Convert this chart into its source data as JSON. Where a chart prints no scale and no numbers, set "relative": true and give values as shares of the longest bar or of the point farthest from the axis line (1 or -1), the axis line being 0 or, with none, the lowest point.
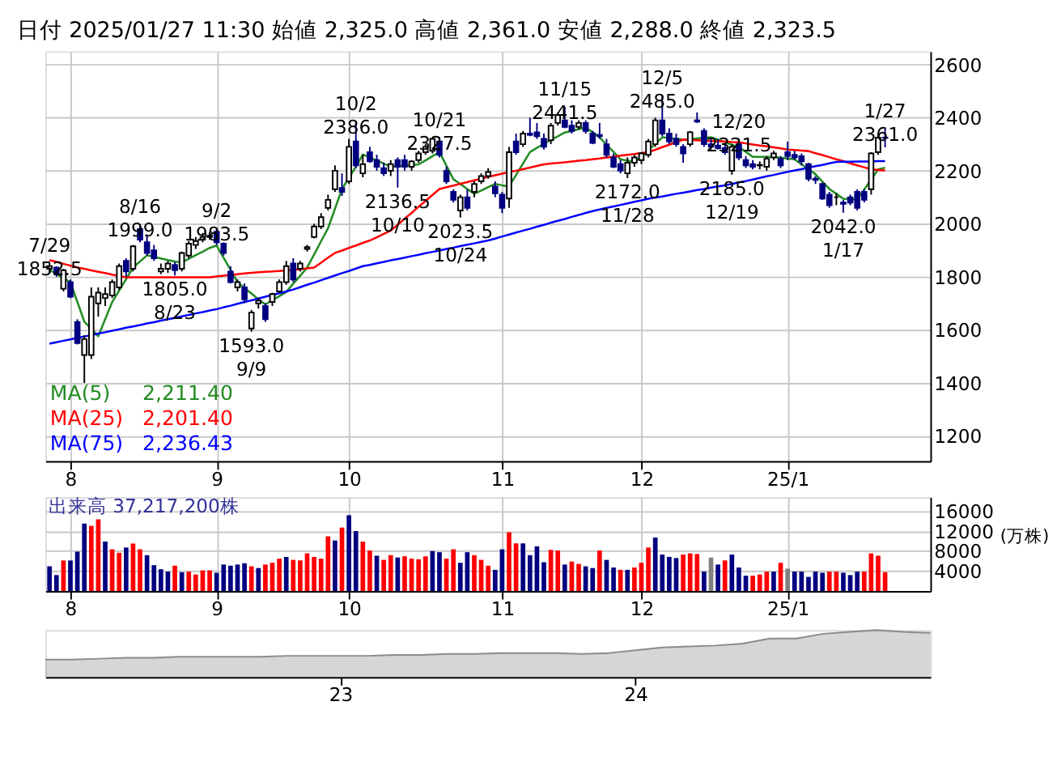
{
  "chart_data": [
    {
      "type": "candlestick",
      "title": "日付 2025/01/27 11:30 始値 2,325.0 高値 2,361.0 安値 2,288.0 終値 2,323.5",
      "categories": [
        null,
        null,
        null,
        "8",
        null,
        null,
        null,
        null,
        null,
        null,
        null,
        null,
        null,
        null,
        null,
        null,
        null,
        null,
        null,
        null,
        null,
        null,
        null,
        null,
        "9",
        null,
        null,
        null,
        null,
        null,
        null,
        null,
        null,
        null,
        null,
        null,
        null,
        null,
        null,
        null,
        null,
        null,
        null,
        "10",
        null,
        null,
        null,
        null,
        null,
        null,
        null,
        null,
        null,
        null,
        null,
        null,
        null,
        null,
        null,
        null,
        null,
        null,
        null,
        null,
        null,
        "11",
        null,
        null,
        null,
        null,
        null,
        null,
        null,
        null,
        null,
        null,
        null,
        null,
        null,
        null,
        null,
        null,
        null,
        null,
        null,
        "12",
        null,
        null,
        null,
        null,
        null,
        null,
        null,
        null,
        null,
        null,
        null,
        null,
        null,
        null,
        null,
        null,
        null,
        null,
        null,
        null,
        "25/1",
        null,
        null,
        null,
        null,
        null,
        null,
        null,
        null,
        null,
        null,
        null,
        null,
        null,
        null
      ],
      "ohlc": [
        [
          1830,
          1852.5,
          1815,
          1840
        ],
        [
          1835,
          1840,
          1800,
          1810
        ],
        [
          1755,
          1830,
          1745,
          1825
        ],
        [
          1780,
          1790,
          1720,
          1725
        ],
        [
          1630,
          1640,
          1545,
          1550
        ],
        [
          1505,
          1580,
          1400,
          1565
        ],
        [
          1505,
          1760,
          1490,
          1725
        ],
        [
          1700,
          1760,
          1650,
          1740
        ],
        [
          1720,
          1760,
          1690,
          1735
        ],
        [
          1730,
          1790,
          1720,
          1780
        ],
        [
          1760,
          1850,
          1750,
          1840
        ],
        [
          1860,
          1870,
          1800,
          1820
        ],
        [
          1830,
          1920,
          1820,
          1915
        ],
        [
          1980,
          1999.0,
          1930,
          1940
        ],
        [
          1930,
          1960,
          1880,
          1890
        ],
        [
          1900,
          1920,
          1860,
          1870
        ],
        [
          1820,
          1850,
          1810,
          1830
        ],
        [
          1830,
          1860,
          1815,
          1850
        ],
        [
          1845,
          1855,
          1805,
          1825
        ],
        [
          1830,
          1895,
          1820,
          1890
        ],
        [
          1880,
          1935,
          1870,
          1925
        ],
        [
          1920,
          1950,
          1905,
          1935
        ],
        [
          1940,
          1965,
          1930,
          1950
        ],
        [
          1950,
          1970,
          1940,
          1955
        ],
        [
          1970,
          1983.5,
          1920,
          1930
        ],
        [
          1925,
          1930,
          1880,
          1890
        ],
        [
          1820,
          1840,
          1775,
          1780
        ],
        [
          1760,
          1790,
          1745,
          1780
        ],
        [
          1760,
          1775,
          1700,
          1715
        ],
        [
          1605,
          1675,
          1593,
          1665
        ],
        [
          1700,
          1720,
          1680,
          1710
        ],
        [
          1690,
          1700,
          1630,
          1640
        ],
        [
          1705,
          1740,
          1690,
          1735
        ],
        [
          1745,
          1790,
          1740,
          1780
        ],
        [
          1780,
          1860,
          1770,
          1840
        ],
        [
          1850,
          1870,
          1780,
          1790
        ],
        [
          1830,
          1860,
          1820,
          1850
        ],
        [
          1905,
          1920,
          1895,
          1912
        ],
        [
          1950,
          2000,
          1945,
          1990
        ],
        [
          1990,
          2040,
          1980,
          2025
        ],
        [
          2060,
          2110,
          2050,
          2090
        ],
        [
          2130,
          2220,
          2120,
          2200
        ],
        [
          2135,
          2190,
          2105,
          2120
        ],
        [
          2160,
          2320,
          2150,
          2290
        ],
        [
          2310,
          2386,
          2210,
          2220
        ],
        [
          2190,
          2260,
          2175,
          2225
        ],
        [
          2270,
          2290,
          2230,
          2235
        ],
        [
          2240,
          2260,
          2200,
          2215
        ],
        [
          2210,
          2230,
          2180,
          2190
        ],
        [
          2200,
          2240,
          2180,
          2225
        ],
        [
          2240,
          2250,
          2136.5,
          2215
        ],
        [
          2240,
          2260,
          2200,
          2215
        ],
        [
          2215,
          2240,
          2200,
          2235
        ],
        [
          2240,
          2275,
          2230,
          2265
        ],
        [
          2270,
          2300,
          2260,
          2290
        ],
        [
          2275,
          2325,
          2265,
          2320
        ],
        [
          2310,
          2327.5,
          2250,
          2260
        ],
        [
          2200,
          2215,
          2150,
          2160
        ],
        [
          2120,
          2130,
          2080,
          2090
        ],
        [
          2050,
          2110,
          2023.5,
          2100
        ],
        [
          2100,
          2130,
          2050,
          2060
        ],
        [
          2120,
          2160,
          2100,
          2150
        ],
        [
          2160,
          2190,
          2150,
          2180
        ],
        [
          2180,
          2210,
          2170,
          2195
        ],
        [
          2140,
          2160,
          2100,
          2115
        ],
        [
          2110,
          2120,
          2040,
          2060
        ],
        [
          2095,
          2290,
          2060,
          2270
        ],
        [
          2310,
          2340,
          2260,
          2270
        ],
        [
          2300,
          2350,
          2290,
          2340
        ],
        [
          2340,
          2400,
          2330,
          2335
        ],
        [
          2345,
          2380,
          2320,
          2330
        ],
        [
          2320,
          2340,
          2280,
          2290
        ],
        [
          2315,
          2380,
          2300,
          2370
        ],
        [
          2380,
          2420,
          2370,
          2410
        ],
        [
          2390,
          2441.5,
          2360,
          2365
        ],
        [
          2370,
          2390,
          2340,
          2350
        ],
        [
          2365,
          2390,
          2355,
          2380
        ],
        [
          2380,
          2390,
          2340,
          2350
        ],
        [
          2340,
          2350,
          2300,
          2305
        ],
        [
          2335,
          2380,
          2320,
          2330
        ],
        [
          2300,
          2320,
          2250,
          2260
        ],
        [
          2250,
          2265,
          2210,
          2215
        ],
        [
          2225,
          2240,
          2190,
          2200
        ],
        [
          2190,
          2250,
          2172,
          2230
        ],
        [
          2230,
          2260,
          2215,
          2250
        ],
        [
          2240,
          2270,
          2225,
          2265
        ],
        [
          2260,
          2320,
          2250,
          2310
        ],
        [
          2300,
          2400,
          2290,
          2390
        ],
        [
          2390,
          2485,
          2330,
          2340
        ],
        [
          2340,
          2360,
          2300,
          2310
        ],
        [
          2320,
          2340,
          2290,
          2300
        ],
        [
          2290,
          2300,
          2230,
          2265
        ],
        [
          2300,
          2350,
          2290,
          2345
        ],
        [
          2390,
          2420,
          2380,
          2385
        ],
        [
          2350,
          2360,
          2290,
          2300
        ],
        [
          2300,
          2320,
          2280,
          2290
        ],
        [
          2295,
          2320,
          2280,
          2285
        ],
        [
          2285,
          2300,
          2260,
          2270
        ],
        [
          2200,
          2300,
          2185,
          2290
        ],
        [
          2300,
          2321.5,
          2240,
          2250
        ],
        [
          2240,
          2255,
          2210,
          2220
        ],
        [
          2225,
          2240,
          2205,
          2215
        ],
        [
          2220,
          2235,
          2205,
          2222
        ],
        [
          2215,
          2255,
          2200,
          2245
        ],
        [
          2250,
          2275,
          2240,
          2265
        ],
        [
          2245,
          2255,
          2210,
          2220
        ],
        [
          2270,
          2310,
          2240,
          2255
        ],
        [
          2260,
          2275,
          2240,
          2250
        ],
        [
          2255,
          2265,
          2220,
          2235
        ],
        [
          2225,
          2230,
          2160,
          2170
        ],
        [
          2170,
          2180,
          2150,
          2165
        ],
        [
          2150,
          2155,
          2090,
          2095
        ],
        [
          2110,
          2120,
          2060,
          2070
        ],
        [
          2100,
          2115,
          2070,
          2100
        ],
        [
          2080,
          2090,
          2042,
          2075
        ],
        [
          2100,
          2110,
          2070,
          2080
        ],
        [
          2120,
          2130,
          2050,
          2060
        ],
        [
          2120,
          2130,
          2080,
          2090
        ],
        [
          2130,
          2270,
          2110,
          2265
        ],
        [
          2270,
          2340,
          2260,
          2325
        ],
        [
          2325,
          2361,
          2288,
          2323.5
        ]
      ],
      "series": [
        {
          "name": "MA(5)",
          "type": "line",
          "color": "#228b22",
          "values": [
            1826,
            1811,
            1795,
            1780,
            1705,
            1631,
            1604,
            1576,
            1640,
            1705,
            1748,
            1791,
            1835,
            1858,
            1881,
            1875,
            1869,
            1863,
            1858,
            1854,
            1868,
            1882,
            1895,
            1909,
            1918,
            1872,
            1826,
            1780,
            1758,
            1737,
            1715,
            1696,
            1712,
            1727,
            1743,
            1774,
            1804,
            1835,
            1884,
            1934,
            1983,
            2057,
            2131,
            2173,
            2215,
            2261,
            2250,
            2238,
            2227,
            2215,
            2217,
            2219,
            2222,
            2224,
            2239,
            2255,
            2270,
            2219,
            2168,
            2150,
            2131,
            2113,
            2125,
            2138,
            2150,
            2145,
            2141,
            2184,
            2227,
            2270,
            2286,
            2301,
            2317,
            2330,
            2344,
            2350,
            2357,
            2363,
            2345,
            2326,
            2298,
            2271,
            2243,
            2238,
            2233,
            2252,
            2277,
            2301,
            2326,
            2323,
            2320,
            2317,
            2319,
            2322,
            2324,
            2326,
            2317,
            2308,
            2298,
            2289,
            2271,
            2252,
            2252,
            2252,
            2252,
            2249,
            2246,
            2243,
            2224,
            2206,
            2187,
            2159,
            2131,
            2113,
            2094,
            2093,
            2091,
            2129,
            2167,
            2205,
            2211.4
          ]
        },
        {
          "name": "MA(25)",
          "type": "line",
          "color": "#ff0000",
          "values": [
            1863,
            1856,
            1849,
            1842,
            1835,
            1830,
            1824,
            1819,
            1814,
            1808,
            1803,
            1798,
            1798,
            1798,
            1798,
            1798,
            1798,
            1798,
            1798,
            1798,
            1798,
            1798,
            1798,
            1798,
            1801,
            1804,
            1807,
            1810,
            1813,
            1815,
            1817,
            1819,
            1820,
            1822,
            1824,
            1826,
            1829,
            1832,
            1835,
            1853,
            1872,
            1890,
            1899,
            1909,
            1918,
            1928,
            1937,
            1949,
            1962,
            1974,
            1996,
            2019,
            2041,
            2064,
            2086,
            2109,
            2131,
            2138,
            2144,
            2151,
            2157,
            2164,
            2170,
            2177,
            2183,
            2189,
            2195,
            2200,
            2206,
            2212,
            2218,
            2224,
            2227,
            2229,
            2232,
            2235,
            2238,
            2240,
            2243,
            2246,
            2250,
            2253,
            2257,
            2260,
            2263,
            2267,
            2270,
            2279,
            2289,
            2298,
            2308,
            2317,
            2316,
            2315,
            2313,
            2312,
            2311,
            2310,
            2308,
            2307,
            2303,
            2299,
            2295,
            2292,
            2288,
            2284,
            2280,
            2278,
            2276,
            2274,
            2266,
            2259,
            2251,
            2243,
            2236,
            2228,
            2220,
            2213,
            2205,
            2203,
            2201.4
          ]
        },
        {
          "name": "MA(75)",
          "type": "line",
          "color": "#0000ff",
          "values": [
            1548,
            1553,
            1559,
            1564,
            1570,
            1575,
            1580,
            1586,
            1591,
            1597,
            1602,
            1608,
            1613,
            1618,
            1624,
            1629,
            1635,
            1640,
            1645,
            1651,
            1656,
            1662,
            1667,
            1673,
            1678,
            1685,
            1691,
            1698,
            1705,
            1711,
            1718,
            1725,
            1732,
            1738,
            1745,
            1752,
            1761,
            1770,
            1778,
            1787,
            1796,
            1805,
            1814,
            1822,
            1831,
            1840,
            1845,
            1851,
            1856,
            1862,
            1867,
            1872,
            1878,
            1883,
            1889,
            1894,
            1899,
            1905,
            1910,
            1916,
            1921,
            1926,
            1932,
            1937,
            1944,
            1952,
            1959,
            1967,
            1974,
            1981,
            1989,
            1996,
            2004,
            2011,
            2018,
            2026,
            2033,
            2041,
            2048,
            2054,
            2060,
            2065,
            2071,
            2077,
            2083,
            2088,
            2094,
            2099,
            2103,
            2108,
            2113,
            2117,
            2122,
            2127,
            2131,
            2136,
            2141,
            2145,
            2150,
            2156,
            2161,
            2167,
            2173,
            2179,
            2184,
            2190,
            2196,
            2201,
            2206,
            2212,
            2217,
            2222,
            2228,
            2233,
            2234,
            2234,
            2235,
            2235,
            2235,
            2236,
            2236.43
          ]
        }
      ],
      "annotations": [
        "2,211.40",
        "2,201.40",
        "2,236.43",
        {
          "text": "7/29\n1852.5",
          "y": 1852.5
        },
        {
          "text": "8/16\n1999.0",
          "y": 1999.0
        },
        {
          "text": "1805.0\n8/23",
          "y": 1805.0
        },
        {
          "text": "9/2\n1983.5",
          "y": 1983.5
        },
        {
          "text": "1593.0\n9/9",
          "y": 1593.0
        },
        {
          "text": "10/2\n2386.0",
          "y": 2386.0
        },
        {
          "text": "2136.5\n10/10",
          "y": 2136.5
        },
        {
          "text": "10/21\n2327.5",
          "y": 2327.5
        },
        {
          "text": "2023.5\n10/24",
          "y": 2023.5
        },
        {
          "text": "11/15\n2441.5",
          "y": 2441.5
        },
        {
          "text": "2172.0\n11/28",
          "y": 2172.0
        },
        {
          "text": "12/5\n2485.0",
          "y": 2485.0
        },
        {
          "text": "2185.0\n12/19",
          "y": 2185.0
        },
        {
          "text": "12/20\n2321.5",
          "y": 2321.5
        },
        {
          "text": "2042.0\n1/17",
          "y": 2042.0
        },
        {
          "text": "1/27\n2361.0",
          "y": 2361.0
        }
      ],
      "ylim": [
        1105,
        2650
      ],
      "yticks": [
        1200,
        1400,
        1600,
        1800,
        2000,
        2200,
        2400,
        2600
      ],
      "grid": true,
      "legend": "bottom left"
    },
    {
      "type": "bar",
      "title": "出来高 37,217,200株",
      "ylabel": "(万株)",
      "categories": [
        null,
        null,
        null,
        "8",
        null,
        null,
        null,
        null,
        null,
        null,
        null,
        null,
        null,
        null,
        null,
        null,
        null,
        null,
        null,
        null,
        null,
        null,
        null,
        null,
        "9",
        null,
        null,
        null,
        null,
        null,
        null,
        null,
        null,
        null,
        null,
        null,
        null,
        null,
        null,
        null,
        null,
        null,
        null,
        "10",
        null,
        null,
        null,
        null,
        null,
        null,
        null,
        null,
        null,
        null,
        null,
        null,
        null,
        null,
        null,
        null,
        null,
        null,
        null,
        null,
        null,
        "11",
        null,
        null,
        null,
        null,
        null,
        null,
        null,
        null,
        null,
        null,
        null,
        null,
        null,
        null,
        null,
        null,
        null,
        null,
        null,
        "12",
        null,
        null,
        null,
        null,
        null,
        null,
        null,
        null,
        null,
        null,
        null,
        null,
        null,
        null,
        null,
        null,
        null,
        null,
        null,
        null,
        "25/1",
        null,
        null,
        null,
        null,
        null,
        null,
        null,
        null,
        null,
        null,
        null,
        null,
        null,
        null
      ],
      "values": [
        4940,
        3180,
        6100,
        6100,
        7880,
        13500,
        13050,
        14350,
        9900,
        8350,
        7650,
        8700,
        9500,
        8350,
        7170,
        5170,
        4350,
        3880,
        5060,
        3760,
        3880,
        3290,
        4120,
        4120,
        3650,
        5290,
        5060,
        5290,
        5530,
        4940,
        4590,
        5290,
        5640,
        6470,
        6820,
        6230,
        6120,
        7530,
        6820,
        6470,
        10940,
        10110,
        12700,
        15170,
        12000,
        9880,
        8110,
        7060,
        6230,
        7170,
        6700,
        6940,
        6470,
        6350,
        6940,
        8000,
        7760,
        6470,
        8350,
        5640,
        7760,
        7170,
        6230,
        5060,
        4230,
        8350,
        11760,
        9530,
        9530,
        7170,
        8940,
        5760,
        8230,
        8110,
        5290,
        5880,
        5410,
        4940,
        4590,
        8110,
        6230,
        4700,
        4230,
        4230,
        4700,
        5640,
        8700,
        10700,
        7290,
        6820,
        6590,
        7290,
        7530,
        7410,
        3880,
        6700,
        5290,
        6120,
        7290,
        4700,
        3060,
        3060,
        3290,
        3880,
        3880,
        5640,
        4470,
        3880,
        3880,
        2820,
        3880,
        3650,
        3880,
        3880,
        3650,
        3180,
        3880,
        3880,
        7530,
        7060,
        3760
      ],
      "colors": [
        "#000080",
        "#000080",
        "#ff0000",
        "#000080",
        "#000080",
        "#000080",
        "#ff0000",
        "#ff0000",
        "#000080",
        "#ff0000",
        "#ff0000",
        "#000080",
        "#ff0000",
        "#ff0000",
        "#000080",
        "#000080",
        "#000080",
        "#000080",
        "#ff0000",
        "#000080",
        "#ff0000",
        "#ff0000",
        "#ff0000",
        "#ff0000",
        "#000080",
        "#000080",
        "#000080",
        "#000080",
        "#000080",
        "#ff0000",
        "#000080",
        "#ff0000",
        "#ff0000",
        "#ff0000",
        "#000080",
        "#ff0000",
        "#ff0000",
        "#ff0000",
        "#ff0000",
        "#ff0000",
        "#ff0000",
        "#000080",
        "#ff0000",
        "#000080",
        "#000080",
        "#ff0000",
        "#ff0000",
        "#000080",
        "#ff0000",
        "#ff0000",
        "#000080",
        "#ff0000",
        "#ff0000",
        "#ff0000",
        "#ff0000",
        "#000080",
        "#000080",
        "#ff0000",
        "#ff0000",
        "#000080",
        "#000080",
        "#ff0000",
        "#ff0000",
        "#ff0000",
        "#000080",
        "#000080",
        "#ff0000",
        "#ff0000",
        "#000080",
        "#000080",
        "#000080",
        "#000080",
        "#ff0000",
        "#ff0000",
        "#000080",
        "#ff0000",
        "#ff0000",
        "#000080",
        "#000080",
        "#ff0000",
        "#000080",
        "#000080",
        "#ff0000",
        "#000080",
        "#ff0000",
        "#ff0000",
        "#ff0000",
        "#000080",
        "#000080",
        "#000080",
        "#000080",
        "#ff0000",
        "#ff0000",
        "#ff0000",
        "#000080",
        "#808080",
        "#000080",
        "#ff0000",
        "#000080",
        "#000080",
        "#000080",
        "#ff0000",
        "#ff0000",
        "#ff0000",
        "#000080",
        "#ff0000",
        "#808080",
        "#000080",
        "#000080",
        "#000080",
        "#000080",
        "#000080",
        "#ff0000",
        "#ff0000",
        "#000080",
        "#000080",
        "#000080",
        "#ff0000",
        "#ff0000",
        "#ff0000",
        "#ff0000"
      ],
      "ylim": [
        0,
        18800
      ],
      "yticks": [
        4000,
        8000,
        12000,
        16000
      ],
      "grid": true
    },
    {
      "type": "area",
      "relative": true,
      "tick_labels": "x",
      "categories": [
        null,
        null,
        null,
        null,
        null,
        null,
        null,
        null,
        null,
        null,
        null,
        "23",
        null,
        null,
        null,
        null,
        null,
        null,
        null,
        null,
        null,
        null,
        "24",
        null,
        null,
        null,
        null,
        null,
        null,
        null,
        null,
        null,
        null,
        null
      ],
      "series": [
        {
          "color": "#8a8a8a",
          "values": [
            0.37,
            0.37,
            0.39,
            0.41,
            0.41,
            0.43,
            0.43,
            0.43,
            0.43,
            0.45,
            0.45,
            0.45,
            0.45,
            0.47,
            0.47,
            0.49,
            0.49,
            0.51,
            0.51,
            0.51,
            0.49,
            0.51,
            0.57,
            0.63,
            0.65,
            0.67,
            0.71,
            0.82,
            0.82,
            0.92,
            0.96,
            1.0,
            0.96,
            0.94
          ]
        }
      ]
    }
  ]
}
